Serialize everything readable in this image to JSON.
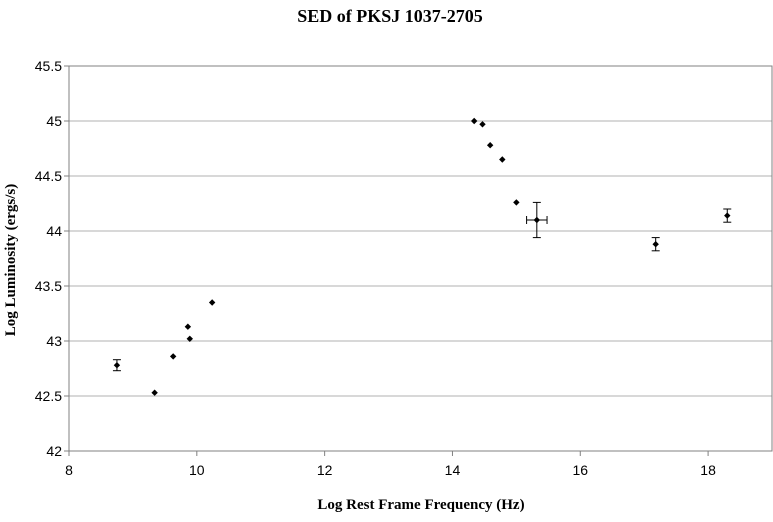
{
  "chart_data": {
    "type": "scatter",
    "title": "SED of PKSJ 1037-2705",
    "xlabel": "Log Rest Frame Frequency (Hz)",
    "ylabel": "Log Luminosity (ergs/s)",
    "xlim": [
      8,
      19
    ],
    "ylim": [
      42,
      45.5
    ],
    "x_ticks": [
      8,
      10,
      12,
      14,
      16,
      18
    ],
    "y_ticks": [
      42,
      42.5,
      43,
      43.5,
      44,
      44.5,
      45,
      45.5
    ],
    "grid": "horizontal major gridlines",
    "legend": "none",
    "series": [
      {
        "points": [
          {
            "x": 8.75,
            "y": 42.78,
            "yerr": 0.05
          },
          {
            "x": 9.34,
            "y": 42.53
          },
          {
            "x": 9.63,
            "y": 42.86
          },
          {
            "x": 9.86,
            "y": 43.13
          },
          {
            "x": 9.89,
            "y": 43.02
          },
          {
            "x": 10.24,
            "y": 43.35
          },
          {
            "x": 14.34,
            "y": 45.0
          },
          {
            "x": 14.47,
            "y": 44.97
          },
          {
            "x": 14.59,
            "y": 44.78
          },
          {
            "x": 14.78,
            "y": 44.65
          },
          {
            "x": 15.0,
            "y": 44.26
          },
          {
            "x": 15.32,
            "y": 44.1,
            "yerr": 0.16,
            "xerr": 0.16
          },
          {
            "x": 17.18,
            "y": 43.88,
            "yerr": 0.06
          },
          {
            "x": 18.3,
            "y": 44.14,
            "yerr": 0.06
          }
        ]
      }
    ],
    "colors": {
      "marker": "#000000",
      "grid": "#b0b0b0",
      "axis": "#808080",
      "text": "#000000"
    }
  }
}
